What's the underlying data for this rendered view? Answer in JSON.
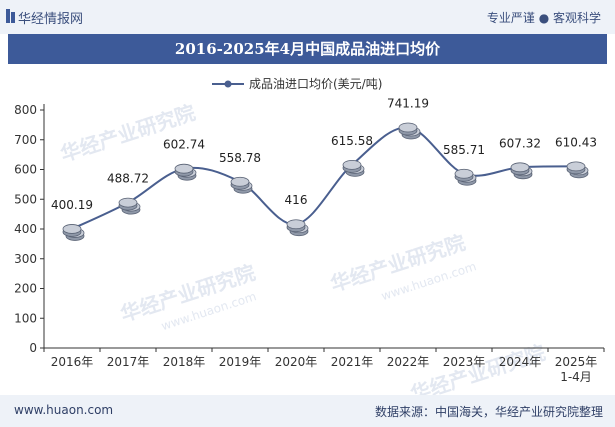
{
  "header": {
    "brand": "华经情报网",
    "slogan": "专业严谨 ● 客观科学"
  },
  "watermark": "华经产业研究院",
  "watermark_url": "www.huaon.com",
  "footer": {
    "website": "www.huaon.com",
    "source": "数据来源：中国海关，华经产业研究院整理"
  },
  "colors": {
    "title_bg": "#3d5a99",
    "line": "#4a5f8f",
    "header_bg": "#eef2f8"
  },
  "chart_data": {
    "type": "line",
    "title": "2016-2025年4月中国成品油进口均价",
    "legend": "成品油进口均价(美元/吨)",
    "legend_position": "top-center",
    "categories": [
      "2016年",
      "2017年",
      "2018年",
      "2019年",
      "2020年",
      "2021年",
      "2022年",
      "2023年",
      "2024年",
      "2025年\n1-4月"
    ],
    "category_lines": [
      [
        "2016年"
      ],
      [
        "2017年"
      ],
      [
        "2018年"
      ],
      [
        "2019年"
      ],
      [
        "2020年"
      ],
      [
        "2021年"
      ],
      [
        "2022年"
      ],
      [
        "2023年"
      ],
      [
        "2024年"
      ],
      [
        "2025年",
        "1-4月"
      ]
    ],
    "series": [
      {
        "name": "成品油进口均价(美元/吨)",
        "values": [
          400.19,
          488.72,
          602.74,
          558.78,
          416,
          615.58,
          741.19,
          585.71,
          607.32,
          610.43
        ]
      }
    ],
    "value_labels": [
      "400.19",
      "488.72",
      "602.74",
      "558.78",
      "416",
      "615.58",
      "741.19",
      "585.71",
      "607.32",
      "610.43"
    ],
    "ylim": [
      0,
      800
    ],
    "yticks": [
      0,
      100,
      200,
      300,
      400,
      500,
      600,
      700,
      800
    ],
    "xlabel": "",
    "ylabel": "",
    "grid": false
  }
}
